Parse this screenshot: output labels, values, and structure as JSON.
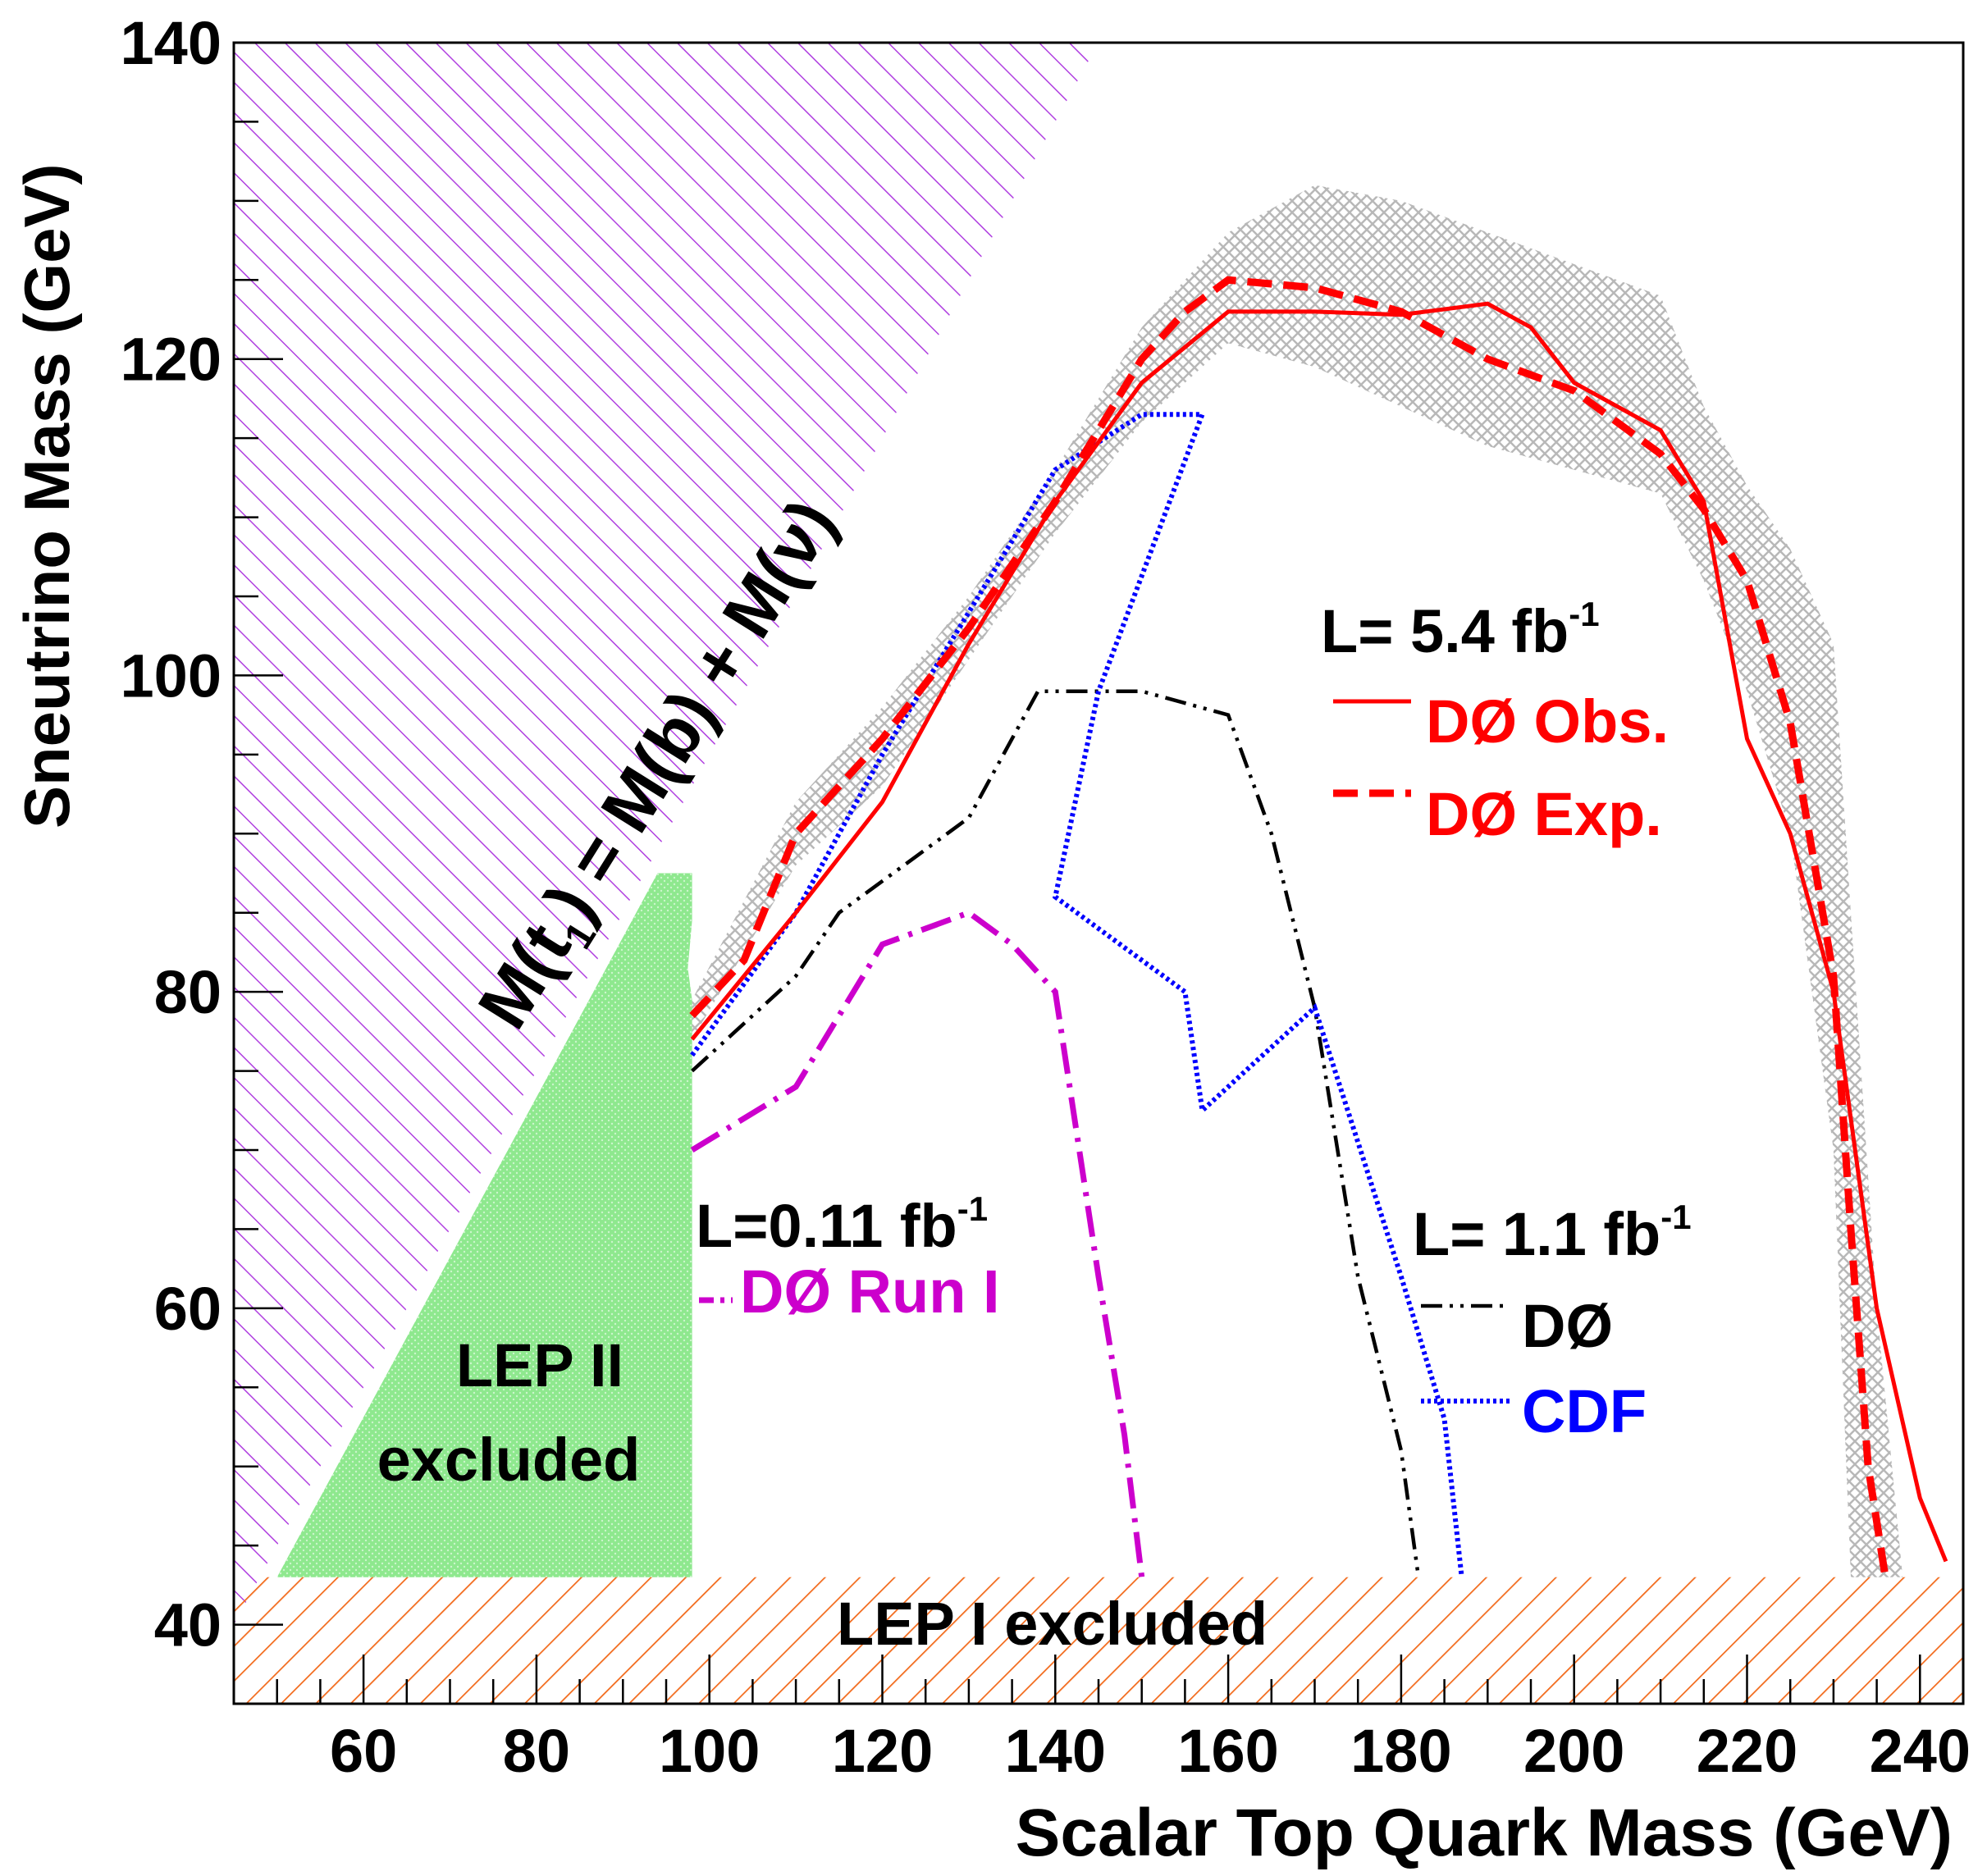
{
  "chart_data": {
    "type": "line",
    "xlabel": "Scalar Top Quark Mass (GeV)",
    "ylabel": "Sneutrino Mass (GeV)",
    "xlim": [
      45,
      245
    ],
    "ylim": [
      35,
      140
    ],
    "xticks": [
      60,
      80,
      100,
      120,
      140,
      160,
      180,
      200,
      220,
      240
    ],
    "yticks": [
      40,
      60,
      80,
      100,
      120,
      140
    ],
    "colors": {
      "lep1": "#f26a1b",
      "lep2": "#7be07b",
      "kinematic": "#b040e0",
      "obs": "#ff0000",
      "exp": "#ff0000",
      "d0_11": "#000000",
      "cdf": "#0000ff",
      "run1": "#cc00cc",
      "band": "#b8b8b8"
    },
    "regions": {
      "lep1_label": "LEP I excluded",
      "lep2_label_line1": "LEP II",
      "lep2_label_line2": "excluded",
      "kinematic_label_1": "M(",
      "kinematic_label_2": ") = M(b) + M(",
      "kinematic_label_3": ")",
      "kinematic_t": "t",
      "kinematic_t_sub": "1",
      "kinematic_nu": "ν",
      "lep1_ymax": 43,
      "lep2_polygon": [
        [
          50,
          43
        ],
        [
          98,
          43
        ],
        [
          98,
          79.5
        ],
        [
          97.5,
          81.5
        ],
        [
          98,
          84.5
        ],
        [
          98,
          87.5
        ],
        [
          94,
          87.5
        ],
        [
          50,
          43
        ]
      ],
      "kinematic_line": [
        [
          45,
          40
        ],
        [
          145,
          140
        ]
      ]
    },
    "legend": {
      "lum_54_prefix": "L= 5.4 fb",
      "lum_54_sup": "-1",
      "obs": "DØ Obs.",
      "exp": "DØ Exp.",
      "lum_11_prefix": "L= 1.1 fb",
      "lum_11_sup": "-1",
      "d0": "DØ",
      "cdf": "CDF",
      "lum_011_prefix": "L=0.11 fb",
      "lum_011_sup": "-1",
      "run1": "DØ Run I"
    },
    "series": [
      {
        "name": "DØ Obs.",
        "style": "solid",
        "points": [
          [
            98,
            77
          ],
          [
            110,
            85
          ],
          [
            120,
            92
          ],
          [
            130,
            102
          ],
          [
            140,
            111
          ],
          [
            150,
            118.5
          ],
          [
            160,
            123
          ],
          [
            170,
            123
          ],
          [
            180,
            122.8
          ],
          [
            190,
            123.5
          ],
          [
            195,
            122
          ],
          [
            200,
            118.5
          ],
          [
            210,
            115.5
          ],
          [
            215,
            111
          ],
          [
            220,
            96
          ],
          [
            225,
            90
          ],
          [
            230,
            80
          ],
          [
            235,
            60
          ],
          [
            240,
            48
          ],
          [
            243,
            44
          ]
        ]
      },
      {
        "name": "DØ Exp.",
        "style": "dashed",
        "points": [
          [
            98,
            78.5
          ],
          [
            104,
            82
          ],
          [
            110,
            90
          ],
          [
            120,
            96
          ],
          [
            130,
            103
          ],
          [
            140,
            111
          ],
          [
            150,
            120
          ],
          [
            155,
            123
          ],
          [
            160,
            125
          ],
          [
            170,
            124.5
          ],
          [
            180,
            123
          ],
          [
            190,
            120
          ],
          [
            200,
            118
          ],
          [
            210,
            114
          ],
          [
            215,
            110.5
          ],
          [
            220,
            106
          ],
          [
            225,
            97
          ],
          [
            230,
            81
          ],
          [
            232,
            65
          ],
          [
            234,
            50
          ],
          [
            236,
            43
          ]
        ]
      },
      {
        "name": "DØ (1.1 fb-1)",
        "style": "dashdot",
        "points": [
          [
            98,
            75
          ],
          [
            110,
            81
          ],
          [
            115,
            85
          ],
          [
            125,
            89
          ],
          [
            130,
            91
          ],
          [
            135,
            96
          ],
          [
            138,
            99
          ],
          [
            150,
            99
          ],
          [
            160,
            97.5
          ],
          [
            165,
            90
          ],
          [
            170,
            79
          ],
          [
            175,
            62
          ],
          [
            180,
            51
          ],
          [
            182,
            43
          ]
        ]
      },
      {
        "name": "CDF",
        "style": "dotted",
        "points": [
          [
            98,
            76
          ],
          [
            110,
            85
          ],
          [
            120,
            95
          ],
          [
            130,
            104
          ],
          [
            140,
            113
          ],
          [
            150,
            116.5
          ],
          [
            157,
            116.5
          ],
          [
            145,
            99
          ],
          [
            140,
            86
          ],
          [
            145,
            84
          ],
          [
            155,
            80
          ],
          [
            157,
            72.5
          ],
          [
            170,
            79
          ],
          [
            180,
            62
          ],
          [
            185,
            53
          ],
          [
            187,
            43
          ]
        ]
      },
      {
        "name": "DØ Run I",
        "style": "dashdot",
        "points": [
          [
            98,
            70
          ],
          [
            110,
            74
          ],
          [
            120,
            83
          ],
          [
            130,
            85
          ],
          [
            135,
            83
          ],
          [
            140,
            80
          ],
          [
            145,
            62
          ],
          [
            148,
            52
          ],
          [
            150,
            43
          ]
        ]
      }
    ],
    "band": {
      "name": "expected uncertainty band",
      "upper": [
        [
          98,
          79.5
        ],
        [
          110,
          92
        ],
        [
          120,
          98
        ],
        [
          130,
          105
        ],
        [
          140,
          113
        ],
        [
          150,
          122
        ],
        [
          160,
          128
        ],
        [
          170,
          131
        ],
        [
          180,
          130
        ],
        [
          190,
          128
        ],
        [
          200,
          126
        ],
        [
          210,
          124
        ],
        [
          215,
          117
        ],
        [
          220,
          112
        ],
        [
          225,
          108
        ],
        [
          230,
          102
        ],
        [
          232,
          85
        ],
        [
          235,
          60
        ],
        [
          238,
          43
        ]
      ],
      "lower": [
        [
          98,
          77
        ],
        [
          110,
          88
        ],
        [
          120,
          93
        ],
        [
          130,
          101
        ],
        [
          140,
          109
        ],
        [
          150,
          116
        ],
        [
          160,
          121
        ],
        [
          170,
          119.5
        ],
        [
          180,
          117
        ],
        [
          190,
          114.5
        ],
        [
          200,
          113
        ],
        [
          210,
          111.5
        ],
        [
          215,
          106
        ],
        [
          220,
          99
        ],
        [
          225,
          90
        ],
        [
          230,
          70
        ],
        [
          232,
          43
        ]
      ]
    }
  }
}
